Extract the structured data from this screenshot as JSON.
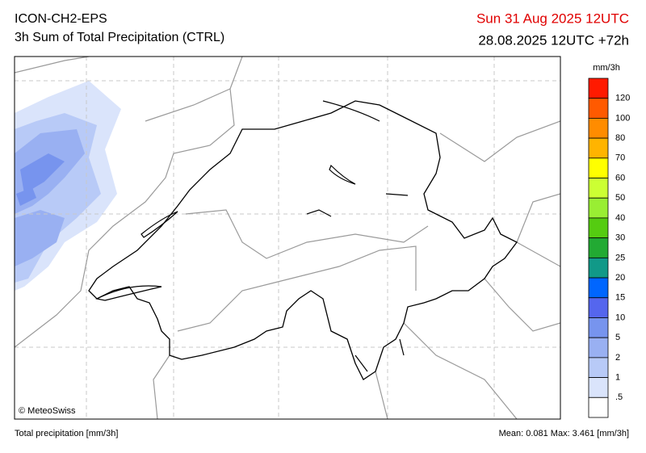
{
  "header": {
    "model": "ICON-CH2-EPS",
    "product": "3h Sum of Total Precipitation (CTRL)",
    "valid_time": "Sun 31 Aug 2025 12UTC",
    "run": "28.08.2025 12UTC +72h"
  },
  "legend": {
    "unit": "mm/3h",
    "labels": [
      "120",
      "100",
      "80",
      "70",
      "60",
      "50",
      "40",
      "30",
      "25",
      "20",
      "15",
      "10",
      "5",
      "2",
      "1",
      ".5"
    ],
    "colors": [
      "#ff1a00",
      "#ff5a00",
      "#ff8c00",
      "#ffb400",
      "#ffff00",
      "#ccff33",
      "#99ee33",
      "#55cc11",
      "#22aa33",
      "#119988",
      "#0066ff",
      "#5566ee",
      "#7794ee",
      "#99b0f2",
      "#b8caf7",
      "#dae4fb",
      "#ffffff"
    ]
  },
  "copyright": "© MeteoSwiss",
  "footer": {
    "left": "Total precipitation [mm/3h]",
    "stats": "Mean:  0.081 Max:  3.461 [mm/3h]"
  }
}
